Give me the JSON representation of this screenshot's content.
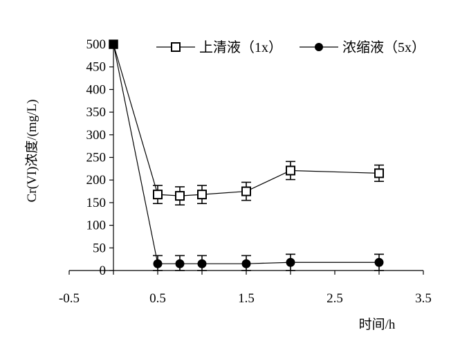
{
  "chart_data": {
    "type": "line",
    "title": "",
    "xlabel": "时间/h",
    "ylabel": "Cr(VI)浓度/(mg/L)",
    "xlim": [
      -0.5,
      3.5
    ],
    "ylim": [
      0,
      500
    ],
    "xticks": [
      -0.5,
      0.5,
      1.5,
      2.5,
      3.5
    ],
    "xtick_labels": [
      "-0.5",
      "0.5",
      "1.5",
      "2.5",
      "3.5"
    ],
    "yticks": [
      0,
      50,
      100,
      150,
      200,
      250,
      300,
      350,
      400,
      450,
      500
    ],
    "ytick_labels": [
      "0",
      "50",
      "100",
      "150",
      "200",
      "250",
      "300",
      "350",
      "400",
      "450",
      "500"
    ],
    "grid": false,
    "legend_position": "top",
    "series": [
      {
        "name": "上清液（1x）",
        "marker": "open-square",
        "x": [
          0,
          0.5,
          0.75,
          1,
          1.5,
          2,
          3
        ],
        "y": [
          500,
          168,
          165,
          168,
          175,
          221,
          215
        ],
        "err": [
          0,
          20,
          20,
          20,
          20,
          20,
          18
        ]
      },
      {
        "name": "浓缩液（5x）",
        "marker": "filled-circle",
        "x": [
          0,
          0.5,
          0.75,
          1,
          1.5,
          2,
          3
        ],
        "y": [
          500,
          15,
          15,
          15,
          15,
          18,
          18
        ],
        "err": [
          0,
          18,
          18,
          18,
          18,
          18,
          18
        ]
      }
    ]
  }
}
